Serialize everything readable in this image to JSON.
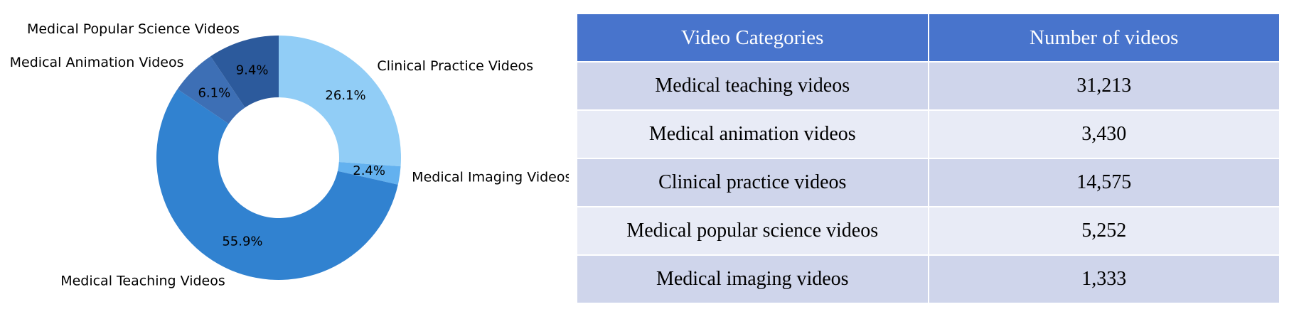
{
  "chart_data": {
    "type": "pie",
    "donut": true,
    "categories": [
      "Clinical Practice Videos",
      "Medical Imaging Videos",
      "Medical Teaching Videos",
      "Medical Animation Videos",
      "Medical Popular Science Videos"
    ],
    "values": [
      26.1,
      2.4,
      55.9,
      6.1,
      9.4
    ],
    "percent_labels": [
      "26.1%",
      "2.4%",
      "55.9%",
      "6.1%",
      "9.4%"
    ],
    "colors": [
      "#91cdf6",
      "#63b1ef",
      "#3182d0",
      "#3d6fb5",
      "#2c5a9c"
    ],
    "start": "top, clockwise",
    "legend": "none"
  },
  "table": {
    "headers": [
      "Video Categories",
      "Number of videos"
    ],
    "rows": [
      [
        "Medical teaching videos",
        "31,213"
      ],
      [
        "Medical animation videos",
        "3,430"
      ],
      [
        "Clinical practice videos",
        "14,575"
      ],
      [
        "Medical popular science videos",
        "5,252"
      ],
      [
        "Medical imaging videos",
        "1,333"
      ]
    ]
  }
}
